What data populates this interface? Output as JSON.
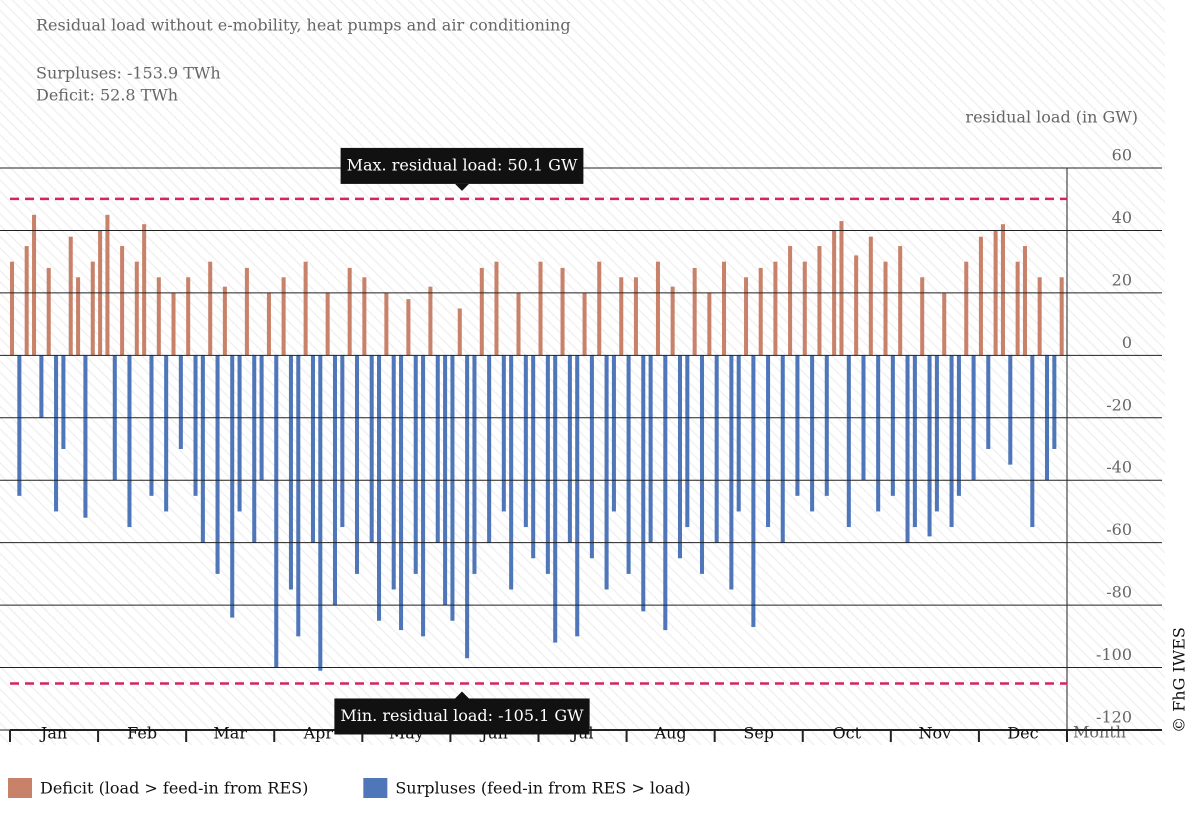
{
  "chart_data": {
    "type": "bar",
    "title": "Residual load without e-mobility, heat pumps and air conditioning",
    "subtitles": [
      "Surpluses: -153.9 TWh",
      "Deficit: 52.8 TWh"
    ],
    "y_label": "residual load (in GW)",
    "x_label": "Month",
    "credit": "© FhG IWES",
    "months": [
      "Jan",
      "Feb",
      "Mar",
      "Apr",
      "May",
      "Jun",
      "Jul",
      "Aug",
      "Sep",
      "Oct",
      "Nov",
      "Dec"
    ],
    "values": [
      30,
      -45,
      35,
      45,
      -20,
      28,
      -50,
      -30,
      38,
      25,
      -52,
      30,
      40,
      45,
      -40,
      35,
      -55,
      30,
      42,
      -45,
      25,
      -50,
      20,
      -30,
      25,
      -45,
      -60,
      30,
      -70,
      22,
      -84,
      -50,
      28,
      -60,
      -40,
      20,
      -100,
      25,
      -75,
      -90,
      30,
      -60,
      -101,
      20,
      -80,
      -55,
      28,
      -70,
      25,
      -60,
      -85,
      20,
      -75,
      -88,
      18,
      -70,
      -90,
      22,
      -60,
      -80,
      -85,
      15,
      -97,
      -70,
      28,
      -60,
      30,
      -50,
      -75,
      20,
      -55,
      -65,
      30,
      -70,
      -92,
      28,
      -60,
      -90,
      20,
      -65,
      30,
      -75,
      -50,
      25,
      -70,
      25,
      -82,
      -60,
      30,
      -88,
      22,
      -65,
      -55,
      28,
      -70,
      20,
      -60,
      30,
      -75,
      -50,
      25,
      -87,
      28,
      -55,
      30,
      -60,
      35,
      -45,
      30,
      -50,
      35,
      -45,
      40,
      43,
      -55,
      32,
      -40,
      38,
      -50,
      30,
      -45,
      35,
      -60,
      -55,
      25,
      -58,
      -50,
      20,
      -55,
      -45,
      30,
      -40,
      38,
      -30,
      40,
      42,
      -35,
      30,
      35,
      -55,
      25,
      -40,
      -30,
      25
    ],
    "positive_color": "#c8826a",
    "negative_color": "#4e76b8",
    "legend": [
      {
        "name": "Deficit (load > feed-in from RES)",
        "color": "#c8826a"
      },
      {
        "name": "Surpluses (feed-in from RES > load)",
        "color": "#4e76b8"
      }
    ],
    "ylim": [
      -120,
      60
    ],
    "yticks": [
      -120,
      -100,
      -80,
      -60,
      -40,
      -20,
      0,
      20,
      40,
      60
    ],
    "grid": true,
    "reference_lines": [
      {
        "label": "Max. residual load: 50.1 GW",
        "value": 50.1,
        "color": "#d6245c"
      },
      {
        "label": "Min. residual load: -105.1 GW",
        "value": -105.1,
        "color": "#d6245c"
      }
    ]
  }
}
